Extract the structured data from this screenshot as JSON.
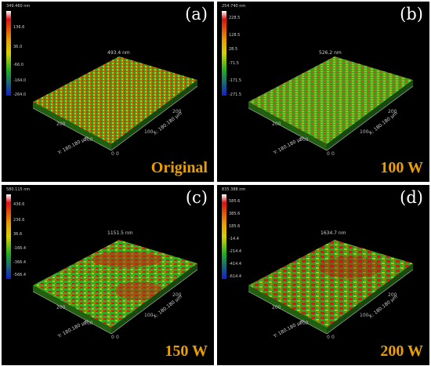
{
  "panels": [
    {
      "letter": "(a)",
      "condition": "Original",
      "peak": "493.4 nm",
      "scale_max": "349.460 nm",
      "ticks": [
        "136.6",
        "36.0",
        "-66.0",
        "-164.0",
        "-264.0"
      ],
      "x_label": "X: 180.180 µm",
      "y_label": "Y: 180.180 µm",
      "axis_ticks": [
        "0",
        "100",
        "200"
      ]
    },
    {
      "letter": "(b)",
      "condition": "100 W",
      "peak": "526.2 nm",
      "scale_max": "254.740 nm",
      "ticks": [
        "228.5",
        "128.5",
        "28.5",
        "-71.5",
        "-171.5",
        "-271.5"
      ],
      "x_label": "X: 180.180 µm",
      "y_label": "Y: 180.180 µm",
      "axis_ticks": [
        "0",
        "100",
        "200"
      ]
    },
    {
      "letter": "(c)",
      "condition": "150 W",
      "peak": "1151.5 nm",
      "scale_max": "580.115 nm",
      "ticks": [
        "436.6",
        "236.6",
        "36.6",
        "-166.4",
        "-366.4",
        "-566.4"
      ],
      "x_label": "X: 180.180 µm",
      "y_label": "Y: 180.180 µm",
      "axis_ticks": [
        "0",
        "100",
        "200"
      ]
    },
    {
      "letter": "(d)",
      "condition": "200 W",
      "peak": "1634.7 nm",
      "scale_max": "835.388 nm",
      "ticks": [
        "585.6",
        "385.6",
        "185.6",
        "-14.4",
        "-214.4",
        "-414.4",
        "-614.4"
      ],
      "x_label": "X: 180.180 µm",
      "y_label": "Y: 180.180 µm",
      "axis_ticks": [
        "0",
        "100",
        "200"
      ]
    }
  ],
  "colors": {
    "red": "#e01010",
    "orange": "#e8a000",
    "yellow": "#d8d000",
    "green": "#20b020",
    "blue": "#1020d0",
    "condition_label": "#e8a000"
  }
}
